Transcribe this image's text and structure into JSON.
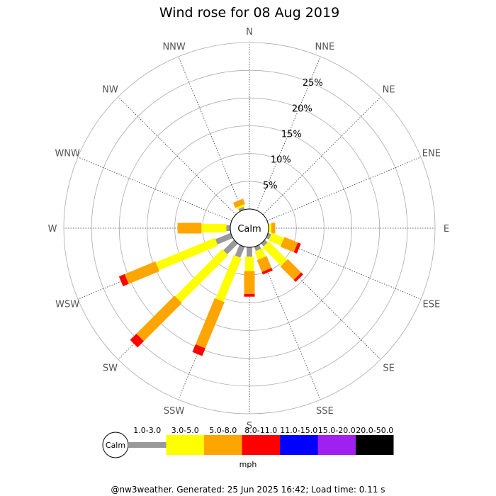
{
  "chart_data": {
    "type": "wind-rose",
    "title": "Wind rose for 08 Aug 2019",
    "center_label": "Calm",
    "directions": [
      "N",
      "NNE",
      "NE",
      "ENE",
      "E",
      "ESE",
      "SE",
      "SSE",
      "S",
      "SSW",
      "SW",
      "WSW",
      "W",
      "WNW",
      "NW",
      "NNW"
    ],
    "radial_ticks": [
      5,
      10,
      15,
      20,
      25
    ],
    "radial_tick_labels": [
      "5%",
      "10%",
      "15%",
      "20%",
      "25%"
    ],
    "rmax": 30,
    "speed_bins": [
      {
        "label": "1.0-3.0",
        "color": "#999999"
      },
      {
        "label": "3.0-5.0",
        "color": "#ffff00"
      },
      {
        "label": "5.0-8.0",
        "color": "#ffa500"
      },
      {
        "label": "8.0-11.0",
        "color": "#ff0000"
      },
      {
        "label": "11.0-15.0",
        "color": "#0000ff"
      },
      {
        "label": "15.0-20.0",
        "color": "#a020f0"
      },
      {
        "label": "20.0-50.0",
        "color": "#000000"
      }
    ],
    "series": [
      {
        "direction": "N",
        "segments": [
          0,
          0,
          0,
          0,
          0,
          0,
          0
        ]
      },
      {
        "direction": "NNE",
        "segments": [
          0,
          0,
          0,
          0,
          0,
          0,
          0
        ]
      },
      {
        "direction": "NE",
        "segments": [
          0,
          0,
          0,
          0,
          0,
          0,
          0
        ]
      },
      {
        "direction": "ENE",
        "segments": [
          0,
          0,
          0,
          0,
          0,
          0,
          0
        ]
      },
      {
        "direction": "E",
        "segments": [
          0,
          0.5,
          0.7,
          0,
          0,
          0,
          0
        ]
      },
      {
        "direction": "ESE",
        "segments": [
          0.6,
          2.4,
          2.6,
          0.6,
          0,
          0,
          0
        ]
      },
      {
        "direction": "SE",
        "segments": [
          0.7,
          4.7,
          3.4,
          0.5,
          0,
          0,
          0
        ]
      },
      {
        "direction": "SSE",
        "segments": [
          0.8,
          1.6,
          2.3,
          0.5,
          0,
          0,
          0
        ]
      },
      {
        "direction": "S",
        "segments": [
          1.7,
          2.6,
          4.1,
          0.5,
          0,
          0,
          0
        ]
      },
      {
        "direction": "SSW",
        "segments": [
          2.1,
          8.5,
          9.0,
          1.5,
          0,
          0,
          0
        ]
      },
      {
        "direction": "SW",
        "segments": [
          2.7,
          12.0,
          9.7,
          1.6,
          0,
          0,
          0
        ]
      },
      {
        "direction": "WSW",
        "segments": [
          3.0,
          11.5,
          6.0,
          1.1,
          0,
          0,
          0
        ]
      },
      {
        "direction": "W",
        "segments": [
          0.7,
          4.5,
          4.3,
          0,
          0,
          0,
          0
        ]
      },
      {
        "direction": "WNW",
        "segments": [
          0,
          0,
          0,
          0,
          0,
          0,
          0
        ]
      },
      {
        "direction": "NW",
        "segments": [
          0,
          0,
          0,
          0,
          0,
          0,
          0
        ]
      },
      {
        "direction": "NNW",
        "segments": [
          0.5,
          0.4,
          1.0,
          0,
          0,
          0,
          0
        ]
      }
    ],
    "legend_calm": "Calm",
    "legend_unit": "mph"
  },
  "footer": "@nw3weather. Generated: 25 Jun 2025 16:42; Load time: 0.11 s"
}
